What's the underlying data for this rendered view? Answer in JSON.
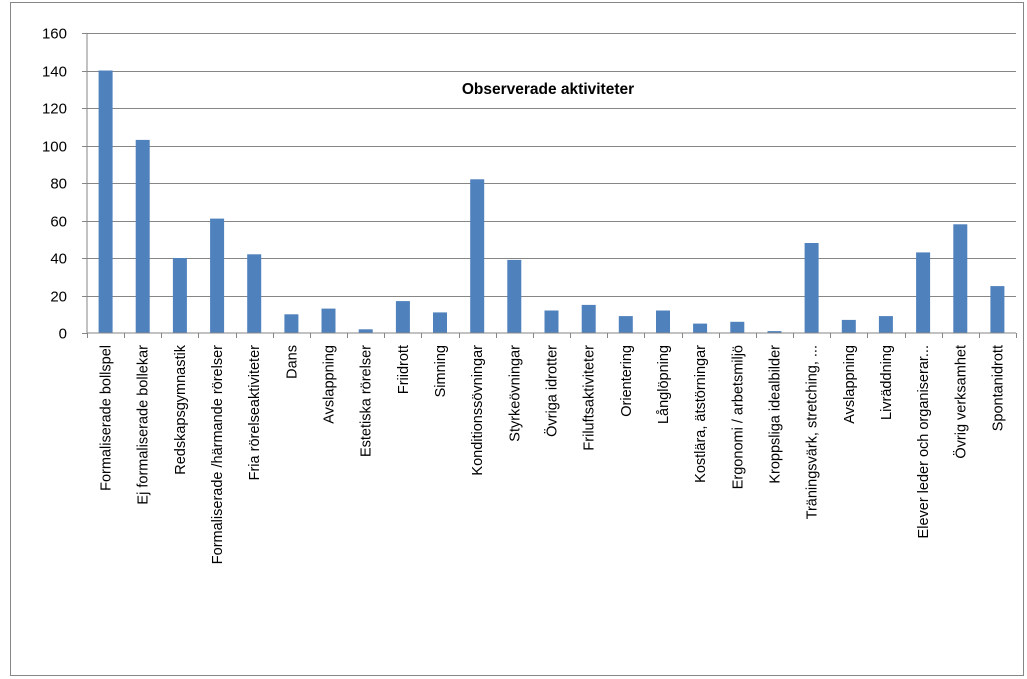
{
  "chart_data": {
    "type": "bar",
    "title": "Observerade aktiviteter",
    "xlabel": "",
    "ylabel": "",
    "ylim": [
      0,
      160
    ],
    "yticks": [
      0,
      20,
      40,
      60,
      80,
      100,
      120,
      140,
      160
    ],
    "grid": true,
    "legend": "none",
    "bar_color": "#4f81bd",
    "grid_color": "#868686",
    "categories": [
      "Formaliserade bollspel",
      "Ej formaliserade bollekar",
      "Redskapsgymnastik",
      "Formaliserade /härmande rörelser",
      "Fria rörelseaktiviteter",
      "Dans",
      "Avslappning",
      "Estetiska rörelser",
      "Friidrott",
      "Simning",
      "Konditionssövningar",
      "Styrkeövningar",
      "Övriga idrotter",
      "Friluftsaktiviteter",
      "Orientering",
      "Långlöpning",
      "Kostlära, ätstörningar",
      "Ergonomi / arbetsmiljö",
      "Kroppsliga idealbilder",
      "Träningsvärk, stretching, ...",
      "Avslappning",
      "Livräddning",
      "Elever leder och organiserar...",
      "Övrig verksamhet",
      "Spontanidrott"
    ],
    "values": [
      140,
      103,
      40,
      61,
      42,
      10,
      13,
      2,
      17,
      11,
      82,
      39,
      12,
      15,
      9,
      12,
      5,
      6,
      1,
      48,
      7,
      9,
      43,
      58,
      25
    ]
  }
}
